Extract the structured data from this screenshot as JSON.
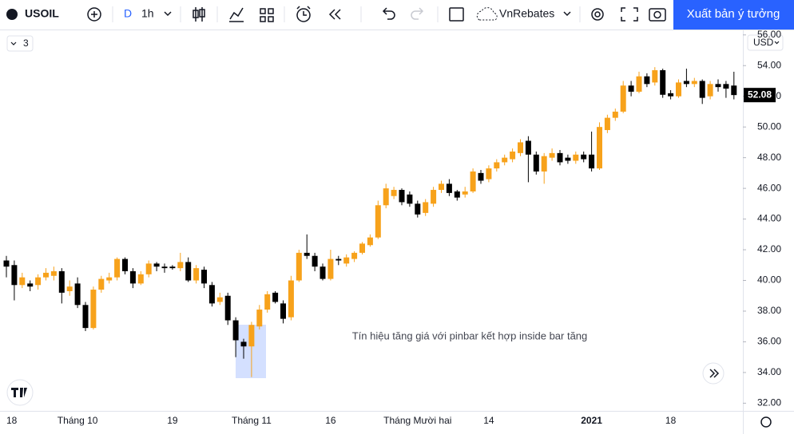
{
  "toolbar": {
    "symbol": "USOIL",
    "interval_prefix": "D",
    "interval": "1h",
    "layout_name": "VnRebates",
    "publish": "Xuất bản ý tưởng"
  },
  "indicators_count": "3",
  "currency": "USD",
  "chart_data": {
    "type": "candlestick",
    "annotation": "Tín hiệu tăng giá với pinbar kết hợp inside bar tăng",
    "last_price_label": "52.08",
    "up_color": "#f7a21b",
    "down_color": "#000000",
    "categories": [
      "18",
      null,
      null,
      null,
      null,
      null,
      null,
      null,
      null,
      "Tháng 10",
      null,
      null,
      null,
      null,
      null,
      null,
      null,
      null,
      null,
      null,
      null,
      "19",
      null,
      null,
      null,
      null,
      null,
      null,
      null,
      null,
      null,
      "Tháng 11",
      null,
      null,
      null,
      null,
      null,
      null,
      null,
      null,
      null,
      "16",
      null,
      null,
      null,
      null,
      null,
      null,
      null,
      null,
      null,
      null,
      "Tháng Mười hai",
      null,
      null,
      null,
      null,
      null,
      null,
      null,
      null,
      "14",
      null,
      null,
      null,
      null,
      null,
      null,
      null,
      null,
      null,
      null,
      null,
      null,
      "2021",
      null,
      null,
      null,
      null,
      null,
      null,
      null,
      null,
      null,
      "18",
      null,
      null,
      null,
      null,
      null,
      null,
      null,
      null
    ],
    "open": [
      41.3,
      41.0,
      39.7,
      39.8,
      39.7,
      40.2,
      40.3,
      40.6,
      39.3,
      39.8,
      38.4,
      36.9,
      39.4,
      40.0,
      40.2,
      41.4,
      40.6,
      39.8,
      40.4,
      41.1,
      40.9,
      40.9,
      40.8,
      41.2,
      40.0,
      40.7,
      39.7,
      38.6,
      39.0,
      37.4,
      36.0,
      35.7,
      37.0,
      38.1,
      39.2,
      38.5,
      37.6,
      40.0,
      41.8,
      41.6,
      40.9,
      40.1,
      41.4,
      41.1,
      41.4,
      41.8,
      42.3,
      42.8,
      44.9,
      45.5,
      45.9,
      45.6,
      45.0,
      44.4,
      45.0,
      45.9,
      46.3,
      45.8,
      45.6,
      45.8,
      47.0,
      46.6,
      47.3,
      47.7,
      47.9,
      48.3,
      49.1,
      48.2,
      47.1,
      48.0,
      48.3,
      48.0,
      47.8,
      48.2,
      48.2,
      47.3,
      49.8,
      50.6,
      51.0,
      52.7,
      52.3,
      53.3,
      52.9,
      53.7,
      52.2,
      52.0,
      53.0,
      52.8,
      53.0,
      52.0,
      52.8,
      52.8,
      52.7
    ],
    "high": [
      41.6,
      41.3,
      40.5,
      40.0,
      40.4,
      40.8,
      40.9,
      40.8,
      40.0,
      40.2,
      38.6,
      39.6,
      40.3,
      40.5,
      41.5,
      41.5,
      40.8,
      40.6,
      41.3,
      41.2,
      41.1,
      41.0,
      41.8,
      41.5,
      41.0,
      40.9,
      39.9,
      39.2,
      39.2,
      37.6,
      36.2,
      37.3,
      38.4,
      39.3,
      39.3,
      38.7,
      40.3,
      42.0,
      43.0,
      41.8,
      41.1,
      42.0,
      41.6,
      41.7,
      41.9,
      42.5,
      43.0,
      45.2,
      46.3,
      46.1,
      46.0,
      45.8,
      45.2,
      45.3,
      46.1,
      46.5,
      46.6,
      45.9,
      46.1,
      47.3,
      47.2,
      47.5,
      47.9,
      48.2,
      48.6,
      49.2,
      49.4,
      48.4,
      48.3,
      48.6,
      48.5,
      48.2,
      48.4,
      48.4,
      49.7,
      50.3,
      50.8,
      51.2,
      53.0,
      53.0,
      53.6,
      53.5,
      53.9,
      53.8,
      52.4,
      53.1,
      53.8,
      53.2,
      53.1,
      53.0,
      53.1,
      53.0,
      53.6
    ],
    "low": [
      40.2,
      38.7,
      39.5,
      39.3,
      39.4,
      40.0,
      40.0,
      38.5,
      39.0,
      38.2,
      36.7,
      36.8,
      39.2,
      39.8,
      40.0,
      40.4,
      39.5,
      39.7,
      40.2,
      40.6,
      40.5,
      40.7,
      40.6,
      39.9,
      39.8,
      39.5,
      38.3,
      38.4,
      37.1,
      35.0,
      34.9,
      33.7,
      36.8,
      37.9,
      38.5,
      37.2,
      37.4,
      39.9,
      41.4,
      40.6,
      40.0,
      40.0,
      41.0,
      40.9,
      41.2,
      41.7,
      42.2,
      42.7,
      44.7,
      45.3,
      44.9,
      44.8,
      44.1,
      44.2,
      44.8,
      45.7,
      45.5,
      45.2,
      45.4,
      45.7,
      46.3,
      46.4,
      47.1,
      47.5,
      47.7,
      48.1,
      46.4,
      46.9,
      46.3,
      47.8,
      47.5,
      47.6,
      47.6,
      47.7,
      47.1,
      47.2,
      49.6,
      50.4,
      50.9,
      52.0,
      52.2,
      52.6,
      52.7,
      51.9,
      51.8,
      51.9,
      52.6,
      52.6,
      51.5,
      51.8,
      52.3,
      51.9,
      51.8
    ],
    "close": [
      40.9,
      39.7,
      40.2,
      39.6,
      40.2,
      40.5,
      40.6,
      39.2,
      39.6,
      38.4,
      36.9,
      39.4,
      40.1,
      40.2,
      41.4,
      40.6,
      39.8,
      40.4,
      41.1,
      40.9,
      40.8,
      40.8,
      41.2,
      40.0,
      40.8,
      39.8,
      38.5,
      38.9,
      37.4,
      36.1,
      35.7,
      37.1,
      38.1,
      39.1,
      38.6,
      37.5,
      40.0,
      41.8,
      41.6,
      40.9,
      40.1,
      41.4,
      41.3,
      41.5,
      41.8,
      42.4,
      42.8,
      44.9,
      46.0,
      45.9,
      45.1,
      45.0,
      44.3,
      45.1,
      45.9,
      46.3,
      45.7,
      45.4,
      45.8,
      47.1,
      46.5,
      47.3,
      47.7,
      48.0,
      48.4,
      49.0,
      48.2,
      47.1,
      48.1,
      48.3,
      47.7,
      47.8,
      48.2,
      47.9,
      47.3,
      50.0,
      50.6,
      51.0,
      52.7,
      52.3,
      53.3,
      52.8,
      53.7,
      52.1,
      52.0,
      52.9,
      52.8,
      53.0,
      51.9,
      52.8,
      52.6,
      52.5,
      52.08
    ],
    "ylim": [
      31.5,
      56.3
    ],
    "yticks": [
      {
        "value": 32,
        "label": "32.00"
      },
      {
        "value": 34,
        "label": "34.00"
      },
      {
        "value": 36,
        "label": "36.00"
      },
      {
        "value": 38,
        "label": "38.00"
      },
      {
        "value": 40,
        "label": "40.00"
      },
      {
        "value": 42,
        "label": "42.00"
      },
      {
        "value": 44,
        "label": "44.00"
      },
      {
        "value": 46,
        "label": "46.00"
      },
      {
        "value": 48,
        "label": "48.00"
      },
      {
        "value": 50,
        "label": "50.00"
      },
      {
        "value": 52,
        "label": "52.00"
      },
      {
        "value": 54,
        "label": "54.00"
      },
      {
        "value": 56,
        "label": "56.00"
      }
    ]
  }
}
